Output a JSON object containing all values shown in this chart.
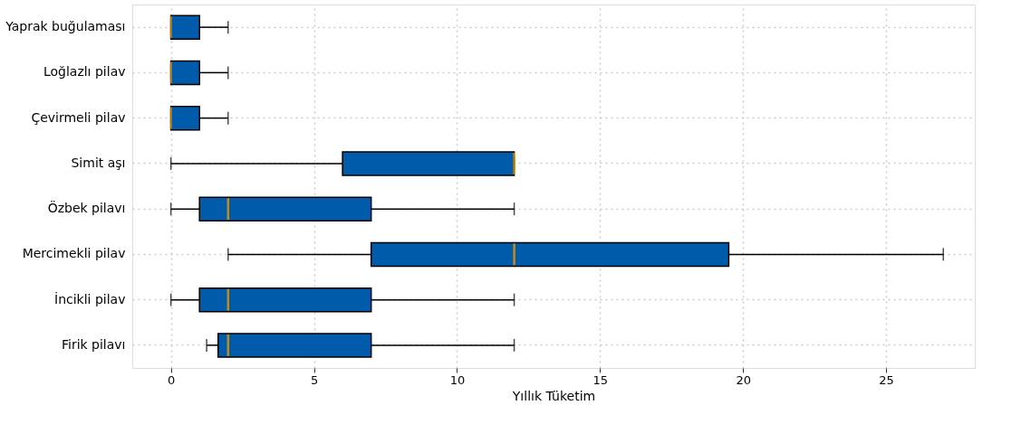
{
  "chart_data": {
    "type": "box",
    "orientation": "horizontal",
    "xlabel": "Yıllık Tüketim",
    "categories": [
      "Yaprak buğulaması",
      "Loğlazlı pilav",
      "Çevirmeli pilav",
      "Simit aşı",
      "Özbek pilavı",
      "Mercimekli pilav",
      "İncikli pilav",
      "Firik pilavı"
    ],
    "boxes": [
      {
        "low": 0,
        "q1": 0,
        "median": 0,
        "q3": 1,
        "high": 2
      },
      {
        "low": 0,
        "q1": 0,
        "median": 0,
        "q3": 1,
        "high": 2
      },
      {
        "low": 0,
        "q1": 0,
        "median": 0,
        "q3": 1,
        "high": 2
      },
      {
        "low": 0,
        "q1": 6,
        "median": 12,
        "q3": 12,
        "high": 12
      },
      {
        "low": 0,
        "q1": 1,
        "median": 2,
        "q3": 7,
        "high": 12
      },
      {
        "low": 2,
        "q1": 7,
        "median": 12,
        "q3": 19.5,
        "high": 27
      },
      {
        "low": 0,
        "q1": 1,
        "median": 2,
        "q3": 7,
        "high": 12
      },
      {
        "low": 1.25,
        "q1": 1.65,
        "median": 2,
        "q3": 7,
        "high": 12
      }
    ],
    "color": "#005bab",
    "xlim": [
      -1.35,
      28.1
    ],
    "xticks": [
      0,
      5,
      10,
      15,
      20,
      25
    ],
    "grid": true
  }
}
